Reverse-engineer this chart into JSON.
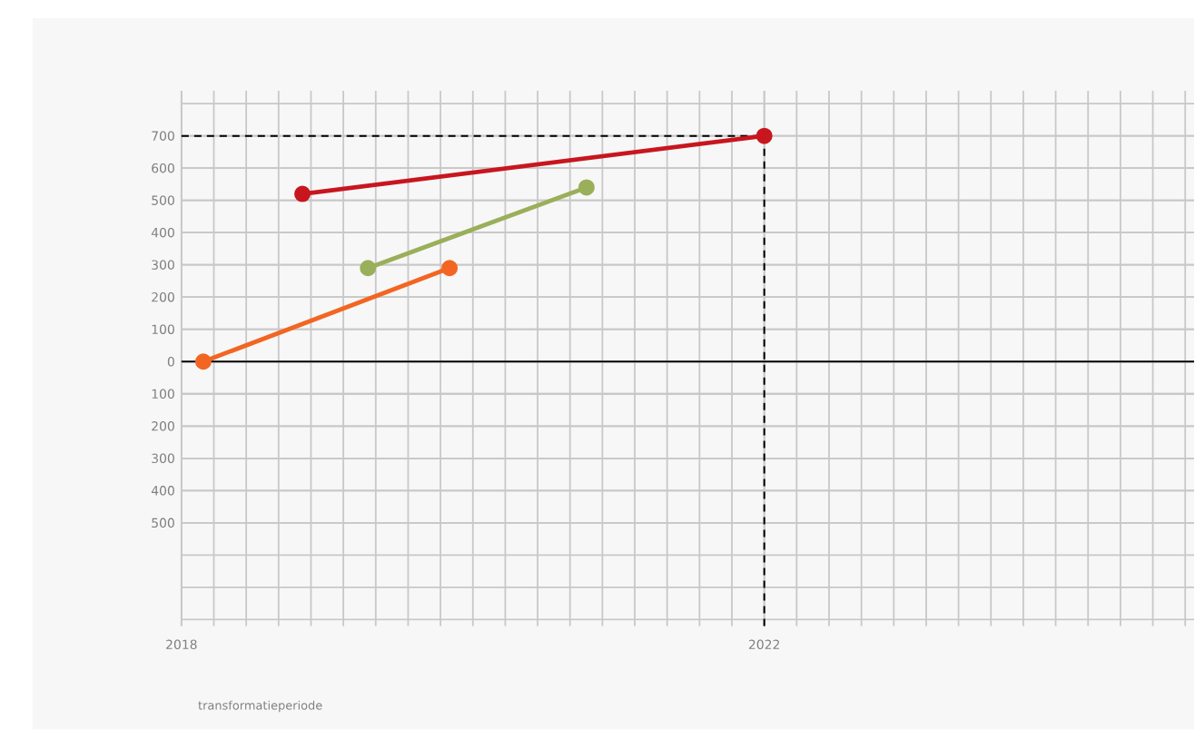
{
  "chart_data": {
    "type": "line",
    "xlabel": "transformatieperiode",
    "xlim": [
      2018,
      2024.95
    ],
    "xticks": [
      2018,
      2022
    ],
    "ylim": [
      -820,
      840
    ],
    "yticks": [
      {
        "value": -500,
        "label": "500"
      },
      {
        "value": -400,
        "label": "400"
      },
      {
        "value": -300,
        "label": "300"
      },
      {
        "value": -200,
        "label": "200"
      },
      {
        "value": -100,
        "label": "100"
      },
      0,
      100,
      200,
      300,
      400,
      500,
      600,
      700
    ],
    "series": [
      {
        "color": "#f26522",
        "x": [
          2018.15,
          2019.84
        ],
        "values": [
          0,
          290
        ]
      },
      {
        "color": "#9aaf5a",
        "x": [
          2019.28,
          2020.78
        ],
        "values": [
          290,
          540
        ]
      },
      {
        "color": "#c8161e",
        "x": [
          2018.83,
          2022.0
        ],
        "values": [
          520,
          700
        ]
      }
    ],
    "ref_lines": [
      {
        "axis": "y",
        "value": 0,
        "color": "#000000",
        "line_style": "solid"
      },
      {
        "axis": "y",
        "value": 700,
        "color": "#000000",
        "line_style": "dashed"
      },
      {
        "axis": "x",
        "value": 2022,
        "color": "#000000",
        "line_style": "dashed"
      }
    ],
    "grid": true,
    "marker": "circle",
    "line_style": "solid"
  }
}
